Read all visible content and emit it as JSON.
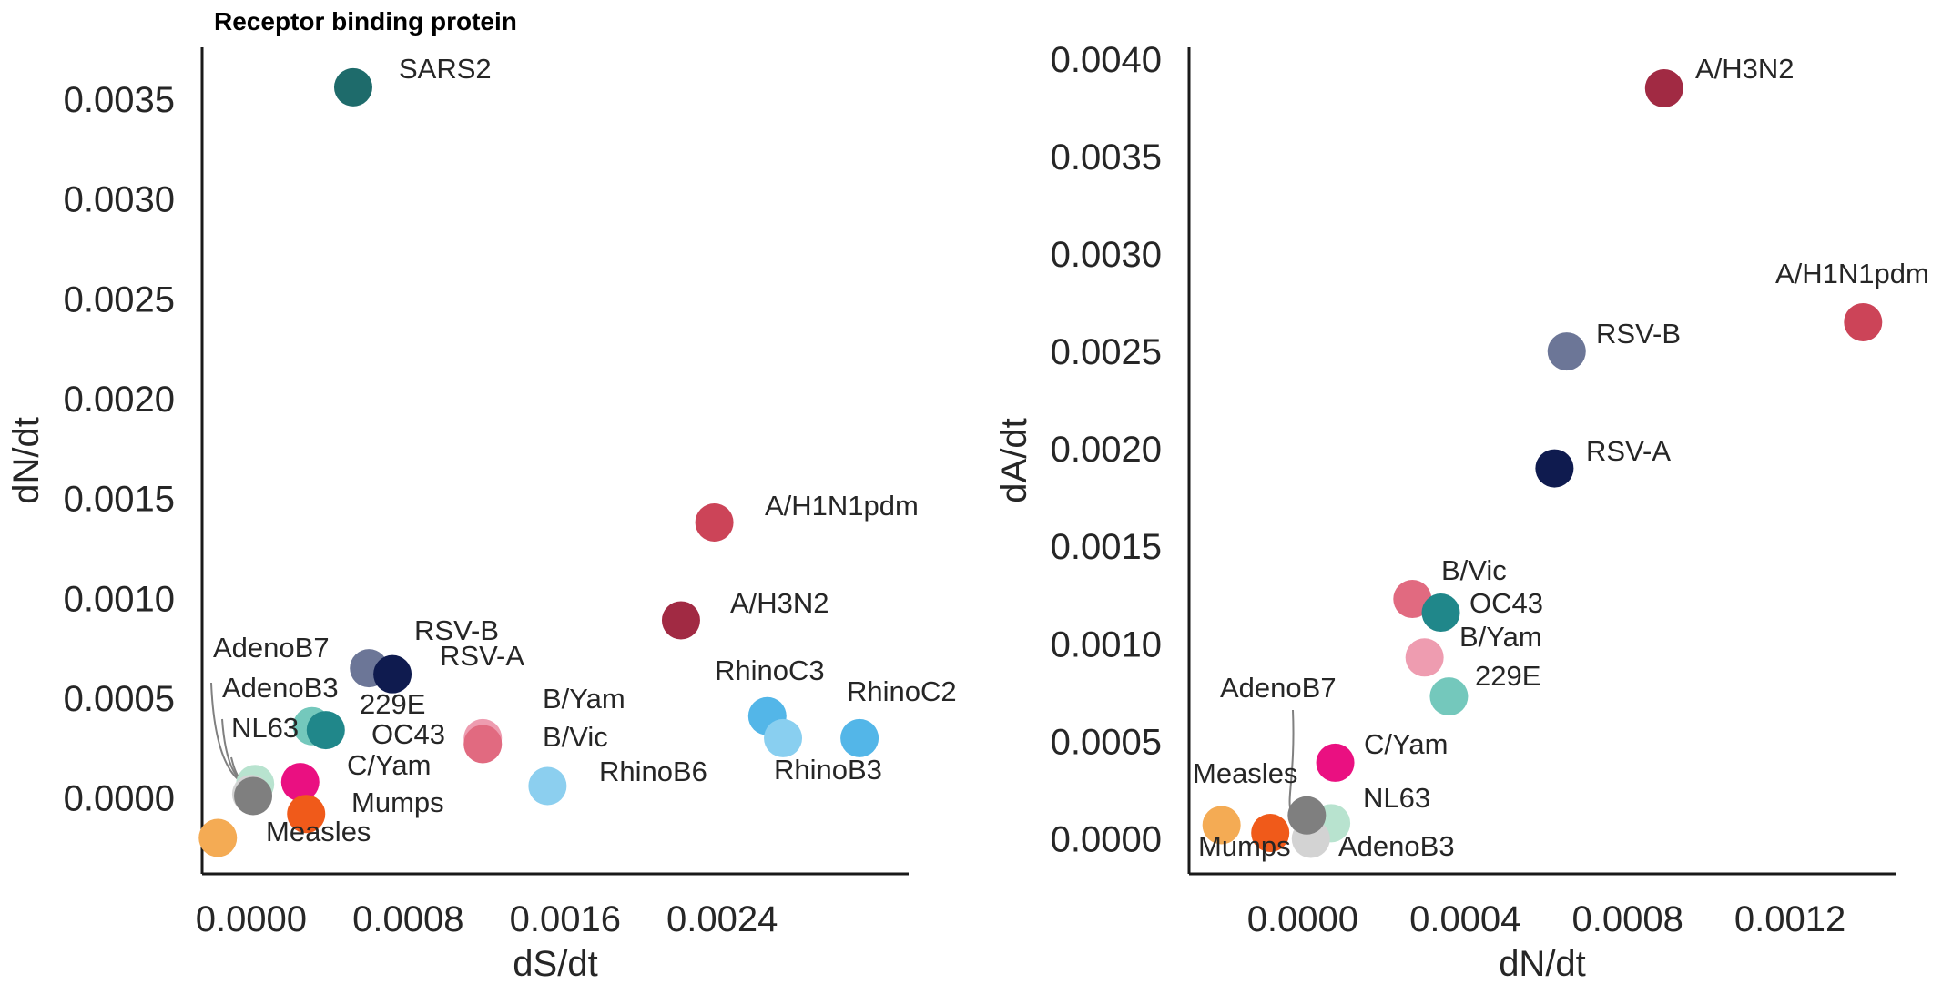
{
  "figure": {
    "title": "Receptor binding protein"
  },
  "chart_data": [
    {
      "type": "scatter",
      "xlabel": "dS/dt",
      "ylabel": "dN/dt",
      "xlim": [
        -0.00025,
        0.00335
      ],
      "ylim": [
        -0.00038,
        0.00376
      ],
      "xticks": [
        "0.0000",
        "0.0008",
        "0.0016",
        "0.0024"
      ],
      "xtick_values": [
        0.0,
        0.0008,
        0.0016,
        0.0024
      ],
      "yticks": [
        "0.0000",
        "0.0005",
        "0.0010",
        "0.0015",
        "0.0020",
        "0.0025",
        "0.0030",
        "0.0035"
      ],
      "ytick_values": [
        0.0,
        0.0005,
        0.001,
        0.0015,
        0.002,
        0.0025,
        0.003,
        0.0035
      ],
      "grid": false,
      "points": [
        {
          "label": "SARS2",
          "x": 0.00052,
          "y": 0.00356,
          "color": "#1e6b6b"
        },
        {
          "label": "A/H1N1pdm",
          "x": 0.00236,
          "y": 0.00138,
          "color": "#cc4458"
        },
        {
          "label": "A/H3N2",
          "x": 0.00219,
          "y": 0.00089,
          "color": "#a12a43"
        },
        {
          "label": "RSV-B",
          "x": 0.0006,
          "y": 0.00065,
          "color": "#6c7697"
        },
        {
          "label": "RSV-A",
          "x": 0.00072,
          "y": 0.00062,
          "color": "#0f1b4f"
        },
        {
          "label": "229E",
          "x": 0.00031,
          "y": 0.00036,
          "color": "#74c8bc"
        },
        {
          "label": "OC43",
          "x": 0.00038,
          "y": 0.00034,
          "color": "#20878a"
        },
        {
          "label": "B/Yam",
          "x": 0.00118,
          "y": 0.0003,
          "color": "#ee9cb0"
        },
        {
          "label": "B/Vic",
          "x": 0.00118,
          "y": 0.00027,
          "color": "#e16a80"
        },
        {
          "label": "RhinoC3",
          "x": 0.00263,
          "y": 0.00041,
          "color": "#53b6e8"
        },
        {
          "label": "RhinoB3",
          "x": 0.00271,
          "y": 0.0003,
          "color": "#89cff0"
        },
        {
          "label": "RhinoC2",
          "x": 0.0031,
          "y": 0.0003,
          "color": "#53b6e8"
        },
        {
          "label": "RhinoB6",
          "x": 0.00151,
          "y": 6e-05,
          "color": "#8ccfef"
        },
        {
          "label": "C/Yam",
          "x": 0.00025,
          "y": 8e-05,
          "color": "#ea1081"
        },
        {
          "label": "Mumps",
          "x": 0.00028,
          "y": -8e-05,
          "color": "#f05a1a"
        },
        {
          "label": "Measles",
          "x": -0.00017,
          "y": -0.0002,
          "color": "#f4ab54"
        },
        {
          "label": "NL63",
          "x": 2e-05,
          "y": 7e-05,
          "color": "#b8e3cf"
        },
        {
          "label": "AdenoB3",
          "x": 0.0,
          "y": 2e-05,
          "color": "#d3d3d3"
        },
        {
          "label": "AdenoB7",
          "x": 1e-05,
          "y": 1e-05,
          "color": "#7f7f7f"
        }
      ]
    },
    {
      "type": "scatter",
      "xlabel": "dN/dt",
      "ylabel": "dA/dt",
      "xlim": [
        -0.00028,
        0.00146
      ],
      "ylim": [
        -0.00018,
        0.00406
      ],
      "xticks": [
        "0.0000",
        "0.0004",
        "0.0008",
        "0.0012"
      ],
      "xtick_values": [
        0.0,
        0.0004,
        0.0008,
        0.0012
      ],
      "yticks": [
        "0.0000",
        "0.0005",
        "0.0010",
        "0.0015",
        "0.0020",
        "0.0025",
        "0.0030",
        "0.0035",
        "0.0040"
      ],
      "ytick_values": [
        0.0,
        0.0005,
        0.001,
        0.0015,
        0.002,
        0.0025,
        0.003,
        0.0035,
        0.004
      ],
      "grid": false,
      "points": [
        {
          "label": "A/H3N2",
          "x": 0.00089,
          "y": 0.00385,
          "color": "#a12a43"
        },
        {
          "label": "A/H1N1pdm",
          "x": 0.00138,
          "y": 0.00265,
          "color": "#cc4458"
        },
        {
          "label": "RSV-B",
          "x": 0.00065,
          "y": 0.0025,
          "color": "#6c7697"
        },
        {
          "label": "RSV-A",
          "x": 0.00062,
          "y": 0.0019,
          "color": "#0f1b4f"
        },
        {
          "label": "B/Vic",
          "x": 0.00027,
          "y": 0.00123,
          "color": "#e16a80"
        },
        {
          "label": "OC43",
          "x": 0.00034,
          "y": 0.00116,
          "color": "#20878a"
        },
        {
          "label": "B/Yam",
          "x": 0.0003,
          "y": 0.00093,
          "color": "#ee9cb0"
        },
        {
          "label": "229E",
          "x": 0.00036,
          "y": 0.00073,
          "color": "#74c8bc"
        },
        {
          "label": "C/Yam",
          "x": 8e-05,
          "y": 0.00039,
          "color": "#ea1081"
        },
        {
          "label": "NL63",
          "x": 7e-05,
          "y": 8e-05,
          "color": "#b8e3cf"
        },
        {
          "label": "AdenoB3",
          "x": 2e-05,
          "y": 0.0,
          "color": "#d3d3d3"
        },
        {
          "label": "AdenoB7",
          "x": 1e-05,
          "y": 0.00012,
          "color": "#7f7f7f"
        },
        {
          "label": "Mumps",
          "x": -8e-05,
          "y": 3e-05,
          "color": "#f05a1a"
        },
        {
          "label": "Measles",
          "x": -0.0002,
          "y": 7e-05,
          "color": "#f4ab54"
        }
      ]
    }
  ]
}
